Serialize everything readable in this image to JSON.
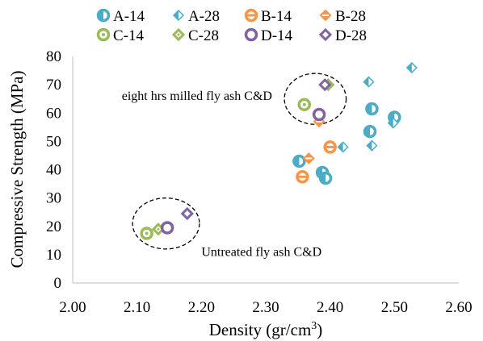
{
  "chart_data": {
    "type": "scatter",
    "xlabel": "Density (gr/cm",
    "xlabel_sup": "3",
    "xlabel_end": ")",
    "ylabel": "Compressive Strength (MPa)",
    "xlim": [
      2.0,
      2.6
    ],
    "ylim": [
      0,
      80
    ],
    "x_ticks": [
      "2.00",
      "2.10",
      "2.20",
      "2.30",
      "2.40",
      "2.50",
      "2.60"
    ],
    "y_ticks": [
      "0",
      "10",
      "20",
      "30",
      "40",
      "50",
      "60",
      "70",
      "80"
    ],
    "x_tick_values": [
      2.0,
      2.1,
      2.2,
      2.3,
      2.4,
      2.5,
      2.6
    ],
    "y_tick_values": [
      0,
      10,
      20,
      30,
      40,
      50,
      60,
      70,
      80
    ],
    "grid": false,
    "legend_position": "top",
    "series": [
      {
        "name": "A-14",
        "color": "#4bacc6",
        "marker": "circle-half",
        "points": [
          {
            "x": 2.352,
            "y": 43.0
          },
          {
            "x": 2.388,
            "y": 39.0
          },
          {
            "x": 2.393,
            "y": 37.0
          },
          {
            "x": 2.462,
            "y": 53.5
          },
          {
            "x": 2.465,
            "y": 61.5
          },
          {
            "x": 2.5,
            "y": 58.5
          }
        ]
      },
      {
        "name": "A-28",
        "color": "#4bacc6",
        "marker": "diamond-half",
        "points": [
          {
            "x": 2.42,
            "y": 48.0
          },
          {
            "x": 2.46,
            "y": 71.0
          },
          {
            "x": 2.465,
            "y": 48.5
          },
          {
            "x": 2.498,
            "y": 56.5
          },
          {
            "x": 2.527,
            "y": 76.0
          }
        ]
      },
      {
        "name": "B-14",
        "color": "#f79646",
        "marker": "circle-minus",
        "points": [
          {
            "x": 2.357,
            "y": 37.5
          },
          {
            "x": 2.4,
            "y": 48.0
          }
        ]
      },
      {
        "name": "B-28",
        "color": "#f79646",
        "marker": "diamond-minus",
        "points": [
          {
            "x": 2.367,
            "y": 44.0
          },
          {
            "x": 2.383,
            "y": 57.0
          }
        ]
      },
      {
        "name": "C-14",
        "color": "#9bbb59",
        "marker": "circle-dot",
        "points": [
          {
            "x": 2.115,
            "y": 17.5
          },
          {
            "x": 2.36,
            "y": 63.0
          }
        ]
      },
      {
        "name": "C-28",
        "color": "#9bbb59",
        "marker": "diamond-dot",
        "points": [
          {
            "x": 2.133,
            "y": 19.0
          },
          {
            "x": 2.397,
            "y": 70.0
          }
        ]
      },
      {
        "name": "D-14",
        "color": "#8064a2",
        "marker": "circle-open",
        "points": [
          {
            "x": 2.147,
            "y": 19.5
          },
          {
            "x": 2.383,
            "y": 59.5
          }
        ]
      },
      {
        "name": "D-28",
        "color": "#8064a2",
        "marker": "diamond-open",
        "points": [
          {
            "x": 2.178,
            "y": 24.5
          },
          {
            "x": 2.392,
            "y": 70.0
          }
        ]
      }
    ],
    "annotations": [
      {
        "text": "eight hrs milled fly ash C&D",
        "x": 2.31,
        "y": 66,
        "anchor": "end"
      },
      {
        "text": "Untreated fly ash C&D",
        "x": 2.2,
        "y": 11,
        "anchor": "start"
      }
    ],
    "ellipses": [
      {
        "cx": 2.377,
        "cy": 65.0,
        "rx": 0.048,
        "ry": 9.0
      },
      {
        "cx": 2.145,
        "cy": 21.0,
        "rx": 0.052,
        "ry": 9.0
      }
    ]
  }
}
